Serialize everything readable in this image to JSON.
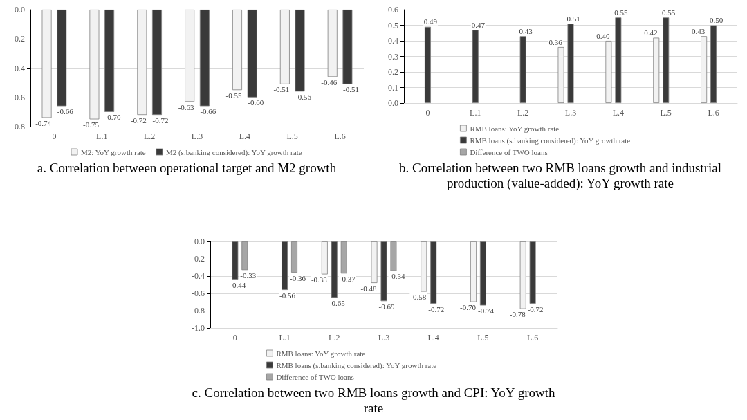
{
  "chart_data": [
    {
      "type": "bar",
      "title": "a.    Correlation between operational target and M2 growth",
      "categories": [
        "0",
        "L.1",
        "L.2",
        "L.3",
        "L.4",
        "L.5",
        "L.6"
      ],
      "series": [
        {
          "name": "M2: YoY growth rate",
          "color": "#f2f2f2",
          "values": [
            -0.74,
            -0.75,
            -0.72,
            -0.63,
            -0.55,
            -0.51,
            -0.46
          ],
          "value_labels": [
            "-0.74",
            "-0.75",
            "-0.72",
            "-0.63",
            "-0.55",
            "-0.51",
            "-0.46"
          ]
        },
        {
          "name": "M2 (s.banking considered): YoY growth rate",
          "color": "#3a3a3a",
          "values": [
            -0.66,
            -0.7,
            -0.72,
            -0.66,
            -0.6,
            -0.56,
            -0.51
          ],
          "value_labels": [
            "-0.66",
            "-0.70",
            "-0.72",
            "-0.66",
            "-0.60",
            "-0.56",
            "-0.51"
          ]
        }
      ],
      "ylim": [
        -0.8,
        0
      ],
      "yticks": [
        {
          "value": -0.8,
          "label": "-0.8"
        },
        {
          "value": -0.6,
          "label": "-0.6"
        },
        {
          "value": -0.4,
          "label": "-0.4"
        },
        {
          "value": -0.2,
          "label": "-0.2"
        },
        {
          "value": 0,
          "label": "0.0"
        }
      ],
      "grid": "y",
      "legend": "bottom"
    },
    {
      "type": "bar",
      "title": "b.    Correlation between two RMB loans growth and industrial production (value-added): YoY growth rate",
      "categories": [
        "0",
        "L.1",
        "L.2",
        "L.3",
        "L.4",
        "L.5",
        "L.6"
      ],
      "series": [
        {
          "name": "RMB loans: YoY growth rate",
          "color": "#f2f2f2",
          "values": [
            null,
            null,
            null,
            0.36,
            0.4,
            0.42,
            0.43
          ],
          "value_labels": [
            null,
            null,
            null,
            "0.36",
            "0.40",
            "0.42",
            "0.43"
          ]
        },
        {
          "name": "RMB loans (s.banking considered): YoY growth rate",
          "color": "#3a3a3a",
          "values": [
            0.49,
            0.47,
            0.43,
            0.51,
            0.55,
            0.55,
            0.5
          ],
          "value_labels": [
            "0.49",
            "0.47",
            "0.43",
            "0.51",
            "0.55",
            "0.55",
            "0.50"
          ]
        },
        {
          "name": "Difference of TWO loans",
          "color": "#a6a6a6",
          "values": [
            null,
            null,
            null,
            null,
            null,
            null,
            null
          ]
        }
      ],
      "ylim": [
        0,
        0.6
      ],
      "yticks": [
        {
          "value": 0,
          "label": "0.0"
        },
        {
          "value": 0.1,
          "label": "0.1"
        },
        {
          "value": 0.2,
          "label": "0.2"
        },
        {
          "value": 0.3,
          "label": "0.3"
        },
        {
          "value": 0.4,
          "label": "0.4"
        },
        {
          "value": 0.5,
          "label": "0.5"
        },
        {
          "value": 0.6,
          "label": "0.6"
        }
      ],
      "grid": "y",
      "legend": "bottom"
    },
    {
      "type": "bar",
      "title": "c.    Correlation between two RMB loans growth and CPI: YoY growth rate",
      "categories": [
        "0",
        "L.1",
        "L.2",
        "L.3",
        "L.4",
        "L.5",
        "L.6"
      ],
      "series": [
        {
          "name": "RMB loans: YoY growth rate",
          "color": "#f2f2f2",
          "values": [
            null,
            null,
            -0.38,
            -0.48,
            -0.58,
            -0.7,
            -0.78
          ],
          "value_labels": [
            null,
            null,
            "-0.38",
            "-0.48",
            "-0.58",
            "-0.70",
            "-0.78"
          ]
        },
        {
          "name": "RMB loans (s.banking considered): YoY growth rate",
          "color": "#3a3a3a",
          "values": [
            -0.44,
            -0.56,
            -0.65,
            -0.69,
            -0.72,
            -0.74,
            -0.72
          ],
          "value_labels": [
            "-0.44",
            "-0.56",
            "-0.65",
            "-0.69",
            "-0.72",
            "-0.74",
            "-0.72"
          ]
        },
        {
          "name": "Difference of TWO loans",
          "color": "#a6a6a6",
          "values": [
            -0.33,
            -0.36,
            -0.37,
            -0.34,
            null,
            null,
            null
          ],
          "value_labels": [
            "-0.33",
            "-0.36",
            "-0.37",
            "-0.34",
            null,
            null,
            null
          ]
        }
      ],
      "ylim": [
        -1.0,
        0
      ],
      "yticks": [
        {
          "value": -1,
          "label": "-1.0"
        },
        {
          "value": -0.8,
          "label": "-0.8"
        },
        {
          "value": -0.6,
          "label": "-0.6"
        },
        {
          "value": -0.4,
          "label": "-0.4"
        },
        {
          "value": -0.2,
          "label": "-0.2"
        },
        {
          "value": 0,
          "label": "0.0"
        }
      ],
      "grid": "y",
      "legend": "bottom"
    }
  ]
}
